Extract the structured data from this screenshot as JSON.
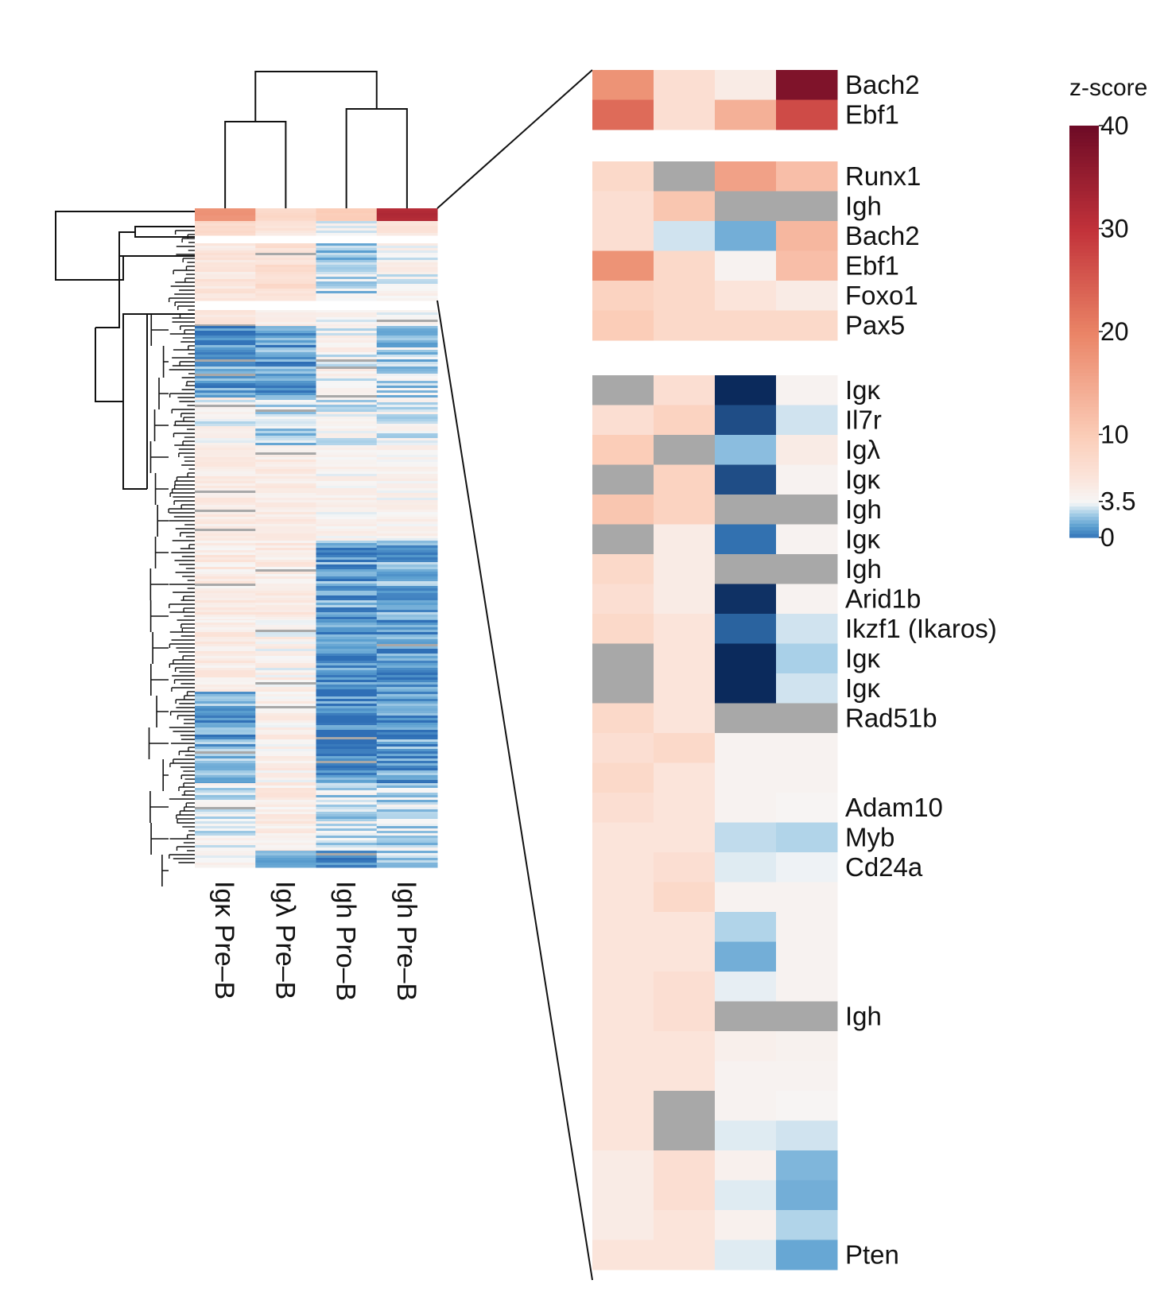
{
  "chart_data": {
    "type": "heatmap",
    "title": "",
    "xlabel": "",
    "ylabel": "",
    "columns": [
      "Igκ Pre–B",
      "Igλ Pre–B",
      "Igh Pro–B",
      "Igh Pre–B"
    ],
    "colorbar": {
      "title": "z-score",
      "ticks": [
        {
          "value": 40,
          "label": "40"
        },
        {
          "value": 30,
          "label": "30"
        },
        {
          "value": 20,
          "label": "20"
        },
        {
          "value": 10,
          "label": "10"
        },
        {
          "value": 3.5,
          "label": "3.5"
        },
        {
          "value": 0,
          "label": "0"
        }
      ],
      "range": [
        0,
        40
      ],
      "center": 3.5
    },
    "missing_color": "#a8a8a8",
    "overview": {
      "column_dendrogram": "(((Igκ Pre–B, Igλ Pre–B), (Igh Pro–B, Igh Pre–B)))",
      "clusters": [
        {
          "block": 1,
          "pattern": [
            18,
            8,
            10,
            32
          ]
        },
        {
          "block": 2,
          "pattern": [
            6,
            7,
            3,
            4
          ]
        },
        {
          "block": 3,
          "pattern": [
            6,
            6,
            0.8,
            2.5
          ]
        }
      ]
    },
    "detail": {
      "blocks": [
        {
          "rows": [
            {
              "label": "Bach2",
              "values": [
                18,
                7,
                5,
                38
              ]
            },
            {
              "label": "Ebf1",
              "values": [
                23,
                7,
                14,
                27
              ]
            }
          ]
        },
        {
          "rows": [
            {
              "label": "Runx1",
              "values": [
                8,
                null,
                16,
                12
              ]
            },
            {
              "label": "Igh",
              "values": [
                7,
                11,
                null,
                null
              ]
            },
            {
              "label": "Bach2",
              "values": [
                7,
                3,
                1.6,
                13
              ]
            },
            {
              "label": "Ebf1",
              "values": [
                18,
                8,
                4,
                12
              ]
            },
            {
              "label": "Foxo1",
              "values": [
                9,
                8,
                6,
                5
              ]
            },
            {
              "label": "Pax5",
              "values": [
                10,
                8,
                8,
                8
              ]
            }
          ]
        },
        {
          "rows": [
            {
              "label": "Igκ",
              "values": [
                null,
                7,
                0,
                4
              ]
            },
            {
              "label": "Il7r",
              "values": [
                7,
                9,
                0.5,
                3
              ]
            },
            {
              "label": "Igλ",
              "values": [
                10,
                null,
                2,
                5
              ]
            },
            {
              "label": "Igκ",
              "values": [
                null,
                9,
                0.5,
                4
              ]
            },
            {
              "label": "Igh",
              "values": [
                11,
                9,
                null,
                null
              ]
            },
            {
              "label": "Igκ",
              "values": [
                null,
                5,
                1,
                4
              ]
            },
            {
              "label": "Igh",
              "values": [
                8,
                5,
                null,
                null
              ]
            },
            {
              "label": "Arid1b",
              "values": [
                7,
                5,
                0.1,
                4
              ]
            },
            {
              "label": "Ikzf1 (Ikaros)",
              "values": [
                8,
                6,
                0.8,
                3
              ]
            },
            {
              "label": "Igκ",
              "values": [
                null,
                6,
                0,
                2.5
              ]
            },
            {
              "label": "Igκ",
              "values": [
                null,
                6,
                0,
                3
              ]
            },
            {
              "label": "Rad51b",
              "values": [
                8,
                6,
                null,
                null
              ]
            },
            {
              "label": "",
              "values": [
                7,
                8,
                4,
                4
              ]
            },
            {
              "label": "",
              "values": [
                8,
                6,
                4,
                4
              ]
            },
            {
              "label": "Adam10",
              "values": [
                7,
                6,
                4,
                3.8
              ]
            },
            {
              "label": "Myb",
              "values": [
                6,
                6,
                2.8,
                2.6
              ]
            },
            {
              "label": "Cd24a",
              "values": [
                6,
                7,
                3.2,
                3.4
              ]
            },
            {
              "label": "",
              "values": [
                6,
                8,
                4,
                4
              ]
            },
            {
              "label": "",
              "values": [
                6,
                6,
                2.6,
                4
              ]
            },
            {
              "label": "",
              "values": [
                6,
                6,
                1.6,
                4
              ]
            },
            {
              "label": "",
              "values": [
                6,
                7,
                3.3,
                4
              ]
            },
            {
              "label": "Igh",
              "values": [
                6,
                7,
                null,
                null
              ]
            },
            {
              "label": "",
              "values": [
                6,
                6,
                4.5,
                4.2
              ]
            },
            {
              "label": "",
              "values": [
                6,
                6,
                4,
                4
              ]
            },
            {
              "label": "",
              "values": [
                6,
                null,
                4,
                3.8
              ]
            },
            {
              "label": "",
              "values": [
                6,
                null,
                3.2,
                3
              ]
            },
            {
              "label": "",
              "values": [
                5,
                7,
                4.3,
                1.8
              ]
            },
            {
              "label": "",
              "values": [
                5,
                7,
                3.2,
                1.6
              ]
            },
            {
              "label": "",
              "values": [
                5,
                6,
                4.3,
                2.6
              ]
            },
            {
              "label": "Pten",
              "values": [
                6,
                6,
                3.2,
                1.4
              ]
            }
          ]
        }
      ]
    }
  }
}
